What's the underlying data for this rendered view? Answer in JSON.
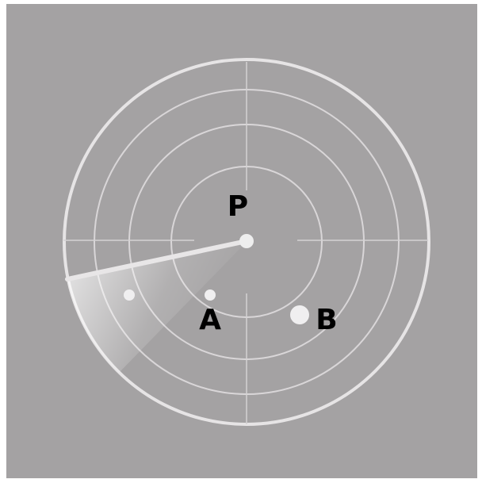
{
  "nodes": [
    {
      "label": "P"
    },
    {
      "label": "A"
    },
    {
      "label": "B"
    }
  ]
}
